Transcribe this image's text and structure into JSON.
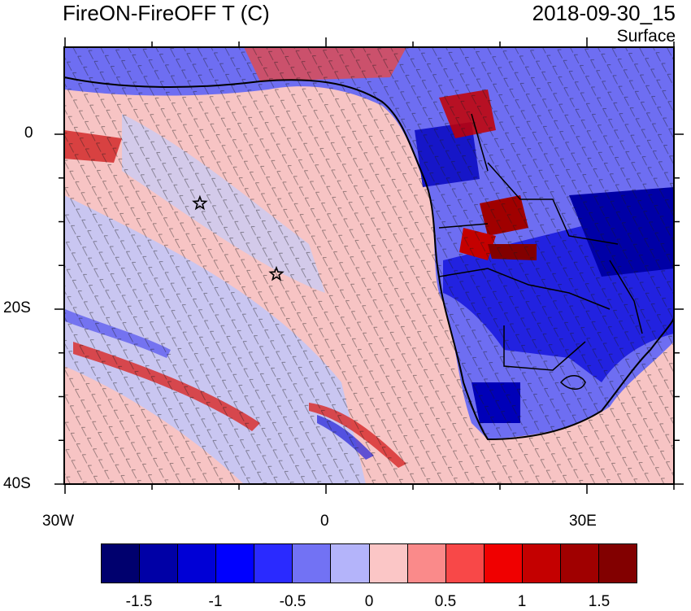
{
  "header": {
    "title": "FireON-FireOFF T (C)",
    "datetime": "2018-09-30_15",
    "level": "Surface"
  },
  "map": {
    "lat_labels": [
      "0",
      "20S",
      "40S"
    ],
    "lon_labels": [
      "30W",
      "0",
      "30E"
    ],
    "markers": [
      {
        "name": "star-marker",
        "lon": -14.5,
        "lat": -7.9
      },
      {
        "name": "star-marker",
        "lon": -5.7,
        "lat": -16.0
      }
    ]
  },
  "colorbar": {
    "labels": [
      "-1.5",
      "-1",
      "-0.5",
      "0",
      "0.5",
      "1",
      "1.5"
    ],
    "colors": [
      "#00006e",
      "#0000a6",
      "#0000d6",
      "#0000ff",
      "#2a2aff",
      "#7272f4",
      "#b4b4fa",
      "#fbc6c6",
      "#fa8a8a",
      "#f84848",
      "#f00000",
      "#c40000",
      "#a00000",
      "#820000"
    ]
  }
}
